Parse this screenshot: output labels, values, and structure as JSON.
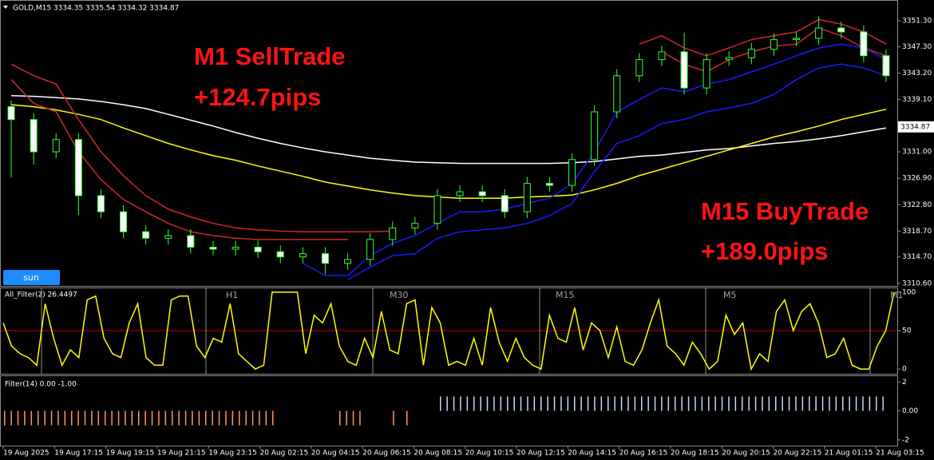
{
  "chart_data": [
    {
      "type": "candlestick",
      "title": "GOLD,M15  3334.35 3335.54 3334.32 3334.87",
      "open": [
        3338.0,
        3336.0,
        3331.0,
        3332.9,
        3324.2,
        3321.7,
        3318.6,
        3317.6,
        3318.0,
        3316.2,
        3315.9,
        3316.2,
        3315.5,
        3314.7,
        3315.2,
        3313.7,
        3314.3,
        3317.4,
        3319.2,
        3319.9,
        3324.2,
        3324.8,
        3324.2,
        3321.7,
        3326.1,
        3325.8,
        3329.8,
        3337.2,
        3342.8,
        3345.3,
        3346.5,
        3340.9,
        3345.3,
        3345.6,
        3346.9,
        3348.4,
        3348.6,
        3350.2,
        3349.6,
        3345.9
      ],
      "high": [
        3339.0,
        3337.0,
        3333.9,
        3333.9,
        3325.2,
        3322.7,
        3319.6,
        3319.0,
        3319.0,
        3317.2,
        3317.2,
        3317.2,
        3316.5,
        3316.2,
        3316.2,
        3315.3,
        3318.4,
        3320.2,
        3320.9,
        3325.2,
        3325.8,
        3325.8,
        3325.2,
        3327.1,
        3327.1,
        3330.8,
        3338.2,
        3343.8,
        3346.3,
        3347.5,
        3349.5,
        3346.3,
        3346.6,
        3347.9,
        3349.4,
        3349.6,
        3352.0,
        3351.2,
        3350.6,
        3346.9
      ],
      "low": [
        3327.0,
        3329.0,
        3330.0,
        3321.2,
        3320.7,
        3317.6,
        3316.6,
        3316.6,
        3315.2,
        3314.9,
        3314.9,
        3314.5,
        3313.7,
        3313.7,
        3312.0,
        3312.7,
        3313.3,
        3316.4,
        3318.2,
        3318.9,
        3323.2,
        3323.2,
        3320.7,
        3320.7,
        3324.8,
        3324.8,
        3328.8,
        3336.2,
        3341.8,
        3344.3,
        3339.9,
        3339.9,
        3344.3,
        3344.6,
        3345.9,
        3347.4,
        3347.6,
        3348.6,
        3344.9,
        3341.8
      ],
      "close": [
        3336.0,
        3331.0,
        3332.9,
        3324.2,
        3321.7,
        3318.6,
        3317.6,
        3318.0,
        3316.2,
        3315.9,
        3316.2,
        3315.5,
        3314.7,
        3315.2,
        3313.7,
        3314.3,
        3317.4,
        3319.2,
        3319.9,
        3324.2,
        3324.8,
        3324.2,
        3321.7,
        3326.1,
        3325.8,
        3329.8,
        3337.2,
        3342.8,
        3345.3,
        3346.5,
        3340.9,
        3345.3,
        3345.6,
        3346.9,
        3348.4,
        3348.6,
        3350.2,
        3349.6,
        3345.9,
        3342.8
      ],
      "up_color": "#32ff32",
      "down_color": "#ffffff",
      "lines": [
        {
          "color": "#ffffff",
          "values": [
            3339.7,
            3339.6,
            3339.4,
            3339.2,
            3338.8,
            3338.3,
            3337.7,
            3336.8,
            3335.9,
            3335.0,
            3334.0,
            3333.1,
            3332.3,
            3331.6,
            3331.0,
            3330.5,
            3330.0,
            3329.7,
            3329.4,
            3329.3,
            3329.2,
            3329.2,
            3329.2,
            3329.2,
            3329.2,
            3329.3,
            3329.5,
            3329.9,
            3330.3,
            3330.5,
            3330.9,
            3331.3,
            3331.5,
            3331.9,
            3332.3,
            3332.6,
            3333.0,
            3333.5,
            3334.1,
            3334.7
          ]
        },
        {
          "color": "#ffff00",
          "values": [
            3338.3,
            3338.0,
            3337.5,
            3336.8,
            3336.0,
            3334.7,
            3333.5,
            3332.3,
            3331.3,
            3330.4,
            3329.7,
            3328.8,
            3328.0,
            3327.2,
            3326.3,
            3325.7,
            3325.1,
            3324.6,
            3324.2,
            3324.0,
            3323.8,
            3323.8,
            3323.8,
            3324.0,
            3324.1,
            3324.3,
            3325.1,
            3326.1,
            3327.3,
            3328.3,
            3329.3,
            3330.3,
            3331.3,
            3332.3,
            3333.3,
            3334.1,
            3335.0,
            3336.0,
            3336.8,
            3337.6
          ]
        },
        {
          "color": "#d02828",
          "values": [
            3344.6,
            3342.8,
            3341.5,
            3336.0,
            3331.0,
            3327.3,
            3324.2,
            3322.1,
            3320.9,
            3319.9,
            3319.2,
            3318.9,
            3318.7,
            3318.6,
            3318.6,
            3318.6,
            3318.6,
            3318.7,
            null,
            null,
            null,
            null,
            null,
            null,
            null,
            null,
            null,
            null,
            3347.7,
            3349.0,
            3347.1,
            3345.9,
            3347.1,
            3348.4,
            3349.0,
            3349.6,
            3351.5,
            3350.8,
            3349.6,
            3347.7
          ]
        },
        {
          "color": "#d02828",
          "values": [
            3342.2,
            3338.5,
            3337.2,
            3331.0,
            3326.7,
            3323.6,
            3321.7,
            3319.9,
            3318.6,
            3318.0,
            3317.6,
            3317.4,
            3317.4,
            3317.4,
            3317.4,
            3317.4,
            null,
            null,
            null,
            null,
            null,
            null,
            null,
            null,
            null,
            null,
            null,
            null,
            null,
            3346.5,
            3344.6,
            3343.4,
            3345.3,
            3346.5,
            3347.4,
            3347.7,
            3350.2,
            3349.0,
            3347.1,
            3345.9
          ]
        },
        {
          "color": "#1a1aff",
          "values": [
            null,
            null,
            null,
            null,
            null,
            null,
            null,
            null,
            null,
            null,
            null,
            null,
            null,
            3313.7,
            3311.8,
            3311.8,
            3314.9,
            3316.8,
            3318.0,
            3319.9,
            3321.7,
            3321.7,
            3322.1,
            3323.0,
            3323.8,
            3326.1,
            3331.0,
            3337.2,
            3339.1,
            3340.9,
            3340.3,
            3341.5,
            3342.2,
            3343.4,
            3344.6,
            3345.9,
            3347.1,
            3347.7,
            3347.1,
            3345.3
          ]
        },
        {
          "color": "#1a1aff",
          "values": [
            null,
            null,
            null,
            null,
            null,
            null,
            null,
            null,
            null,
            null,
            null,
            null,
            null,
            null,
            null,
            3311.2,
            3313.1,
            3314.9,
            3315.2,
            3317.6,
            3318.6,
            3318.9,
            3319.2,
            3319.9,
            3321.1,
            3323.0,
            3327.9,
            3332.3,
            3333.5,
            3335.4,
            3336.0,
            3337.2,
            3337.8,
            3338.5,
            3339.9,
            3342.2,
            3344.0,
            3344.6,
            3344.0,
            3342.8
          ]
        }
      ],
      "ylim": [
        3310.2,
        3353.8
      ],
      "yticks": [
        {
          "value": 3351.3,
          "label": "3351.30"
        },
        {
          "value": 3347.3,
          "label": "3347.30"
        },
        {
          "value": 3343.2,
          "label": "3343.20"
        },
        {
          "value": 3339.1,
          "label": "3339.10"
        },
        {
          "value": 3331.0,
          "label": "3331.00"
        },
        {
          "value": 3326.9,
          "label": "3326.90"
        },
        {
          "value": 3322.8,
          "label": "3322.80"
        },
        {
          "value": 3318.7,
          "label": "3318.70"
        },
        {
          "value": 3314.7,
          "label": "3314.70"
        },
        {
          "value": 3310.6,
          "label": "3310.60"
        }
      ],
      "last_price": 3334.87,
      "annotations": [
        "M1 SellTrade",
        "+124.7pips",
        "M15 BuyTrade",
        "+189.0pips"
      ],
      "button": "sun"
    },
    {
      "type": "line",
      "title": "All_Filter(2) 26.4497",
      "values": [
        60,
        30,
        20,
        15,
        5,
        85,
        40,
        5,
        25,
        15,
        90,
        95,
        40,
        20,
        15,
        60,
        85,
        15,
        5,
        5,
        90,
        95,
        95,
        30,
        15,
        40,
        35,
        85,
        20,
        10,
        0,
        5,
        100,
        100,
        100,
        100,
        20,
        70,
        60,
        85,
        30,
        10,
        5,
        40,
        15,
        75,
        25,
        20,
        85,
        90,
        5,
        80,
        60,
        5,
        10,
        5,
        40,
        5,
        80,
        35,
        10,
        40,
        15,
        5,
        0,
        70,
        40,
        35,
        80,
        25,
        60,
        50,
        15,
        55,
        10,
        5,
        25,
        60,
        90,
        30,
        20,
        5,
        35,
        20,
        0,
        10,
        70,
        45,
        60,
        0,
        20,
        10,
        75,
        90,
        50,
        75,
        85,
        60,
        15,
        20,
        40,
        5,
        0,
        0,
        30,
        50,
        100
      ],
      "color": "#ffff00",
      "level": 50,
      "level_color": "#c00000",
      "ylim": [
        -4,
        104
      ],
      "yticks": [
        100,
        50,
        0
      ],
      "section_labels": [
        "H1",
        "M30",
        "M15",
        "M5",
        "M1"
      ]
    },
    {
      "type": "bar",
      "title": "Filter(14) 0.00 -1.00",
      "values": [
        -1,
        -1,
        -1,
        -1,
        -1,
        -1,
        -1,
        -1,
        -1,
        -1,
        -1,
        -1,
        -1,
        -1,
        -1,
        -1,
        -1,
        -1,
        -1,
        -1,
        -1,
        -1,
        -1,
        -1,
        -1,
        -1,
        -1,
        -1,
        -1,
        -1,
        -1,
        -1,
        -1,
        -1,
        -1,
        -1,
        -1,
        -1,
        -1,
        -1,
        -1,
        0,
        0,
        0,
        0,
        0,
        0,
        0,
        0,
        0,
        -1,
        -1,
        -1,
        -1,
        0,
        0,
        0,
        0,
        -1,
        0,
        -1,
        0,
        0,
        0,
        0,
        1,
        1,
        1,
        1,
        1,
        1,
        1,
        1,
        1,
        1,
        1,
        1,
        1,
        1,
        1,
        1,
        1,
        1,
        1,
        1,
        1,
        1,
        1,
        1,
        1,
        1,
        1,
        1,
        1,
        1,
        1,
        1,
        1,
        1,
        1,
        1,
        1,
        1,
        1,
        1,
        1,
        1,
        1,
        1,
        1,
        1,
        1,
        1,
        1,
        1,
        1,
        1,
        1,
        1,
        1,
        1,
        1,
        1,
        1,
        1,
        1,
        1,
        1,
        1,
        1,
        1,
        1
      ],
      "up_color": "#c8d4ff",
      "down_color": "#ff9a5a",
      "ylim": [
        -2.4,
        2.4
      ],
      "yticks": [
        2,
        {
          "value": 0,
          "label": "0.00"
        },
        -2
      ],
      "x_labels": [
        "19 Aug 2025",
        "19 Aug 17:15",
        "19 Aug 19:15",
        "19 Aug 21:15",
        "19 Aug 23:15",
        "20 Aug 02:15",
        "20 Aug 04:15",
        "20 Aug 06:15",
        "20 Aug 08:15",
        "20 Aug 10:15",
        "20 Aug 12:15",
        "20 Aug 14:15",
        "20 Aug 16:15",
        "20 Aug 18:15",
        "20 Aug 20:15",
        "20 Aug 22:15",
        "21 Aug 01:15",
        "21 Aug 03:15"
      ]
    }
  ]
}
